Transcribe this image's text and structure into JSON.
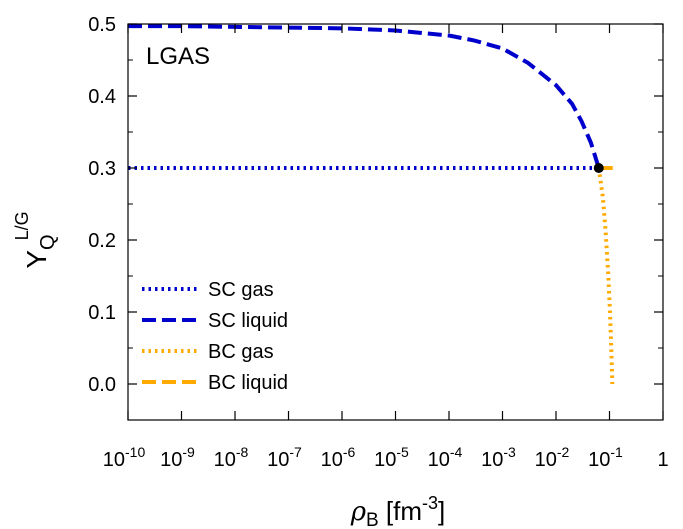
{
  "chart_data": {
    "type": "line",
    "title": "",
    "panel_label": "LGAS",
    "xlabel": {
      "symbol": "ρ",
      "sub": "B",
      "unit_open": " [fm",
      "unit_sup": "-3",
      "unit_close": "]"
    },
    "ylabel": {
      "main": "Y",
      "sub": "Q",
      "sup": "L/G"
    },
    "x_scale": "log",
    "xlim": [
      1e-10,
      1
    ],
    "ylim": [
      -0.05,
      0.5
    ],
    "x_ticks": [
      {
        "base": "10",
        "exp": "-10"
      },
      {
        "base": "10",
        "exp": "-9"
      },
      {
        "base": "10",
        "exp": "-8"
      },
      {
        "base": "10",
        "exp": "-7"
      },
      {
        "base": "10",
        "exp": "-6"
      },
      {
        "base": "10",
        "exp": "-5"
      },
      {
        "base": "10",
        "exp": "-4"
      },
      {
        "base": "10",
        "exp": "-3"
      },
      {
        "base": "10",
        "exp": "-2"
      },
      {
        "base": "10",
        "exp": "-1"
      },
      {
        "base": "1",
        "exp": ""
      }
    ],
    "y_ticks": [
      "0.0",
      "0.1",
      "0.2",
      "0.3",
      "0.4",
      "0.5"
    ],
    "legend_position": "bottom-left",
    "grid": false,
    "series": [
      {
        "name": "SC gas",
        "color": "#0000cc",
        "style": "dotted",
        "x": [
          1e-10,
          1e-09,
          1e-08,
          1e-07,
          1e-06,
          1e-05,
          0.0001,
          0.001,
          0.01,
          0.063
        ],
        "y": [
          0.3,
          0.3,
          0.3,
          0.3,
          0.3,
          0.3,
          0.3,
          0.3,
          0.3,
          0.3
        ]
      },
      {
        "name": "SC liquid",
        "color": "#0000cc",
        "style": "dashed",
        "x": [
          1e-10,
          1e-09,
          1e-08,
          1e-07,
          1e-06,
          1e-05,
          0.0001,
          0.0003,
          0.001,
          0.003,
          0.01,
          0.02,
          0.03,
          0.045,
          0.063
        ],
        "y": [
          0.497,
          0.497,
          0.496,
          0.495,
          0.494,
          0.491,
          0.484,
          0.477,
          0.466,
          0.446,
          0.415,
          0.389,
          0.365,
          0.335,
          0.3
        ]
      },
      {
        "name": "BC gas",
        "color": "#ffaa00",
        "style": "dotted",
        "x": [
          0.063,
          0.075,
          0.085,
          0.095,
          0.102,
          0.108,
          0.113
        ],
        "y": [
          0.3,
          0.26,
          0.21,
          0.15,
          0.1,
          0.05,
          0.0
        ]
      },
      {
        "name": "BC liquid",
        "color": "#ffaa00",
        "style": "dashed",
        "x": [
          0.063,
          0.08,
          0.1,
          0.115
        ],
        "y": [
          0.3,
          0.3,
          0.3,
          0.3
        ]
      }
    ],
    "marker": {
      "x": 0.063,
      "y": 0.3,
      "color": "#000000"
    }
  }
}
